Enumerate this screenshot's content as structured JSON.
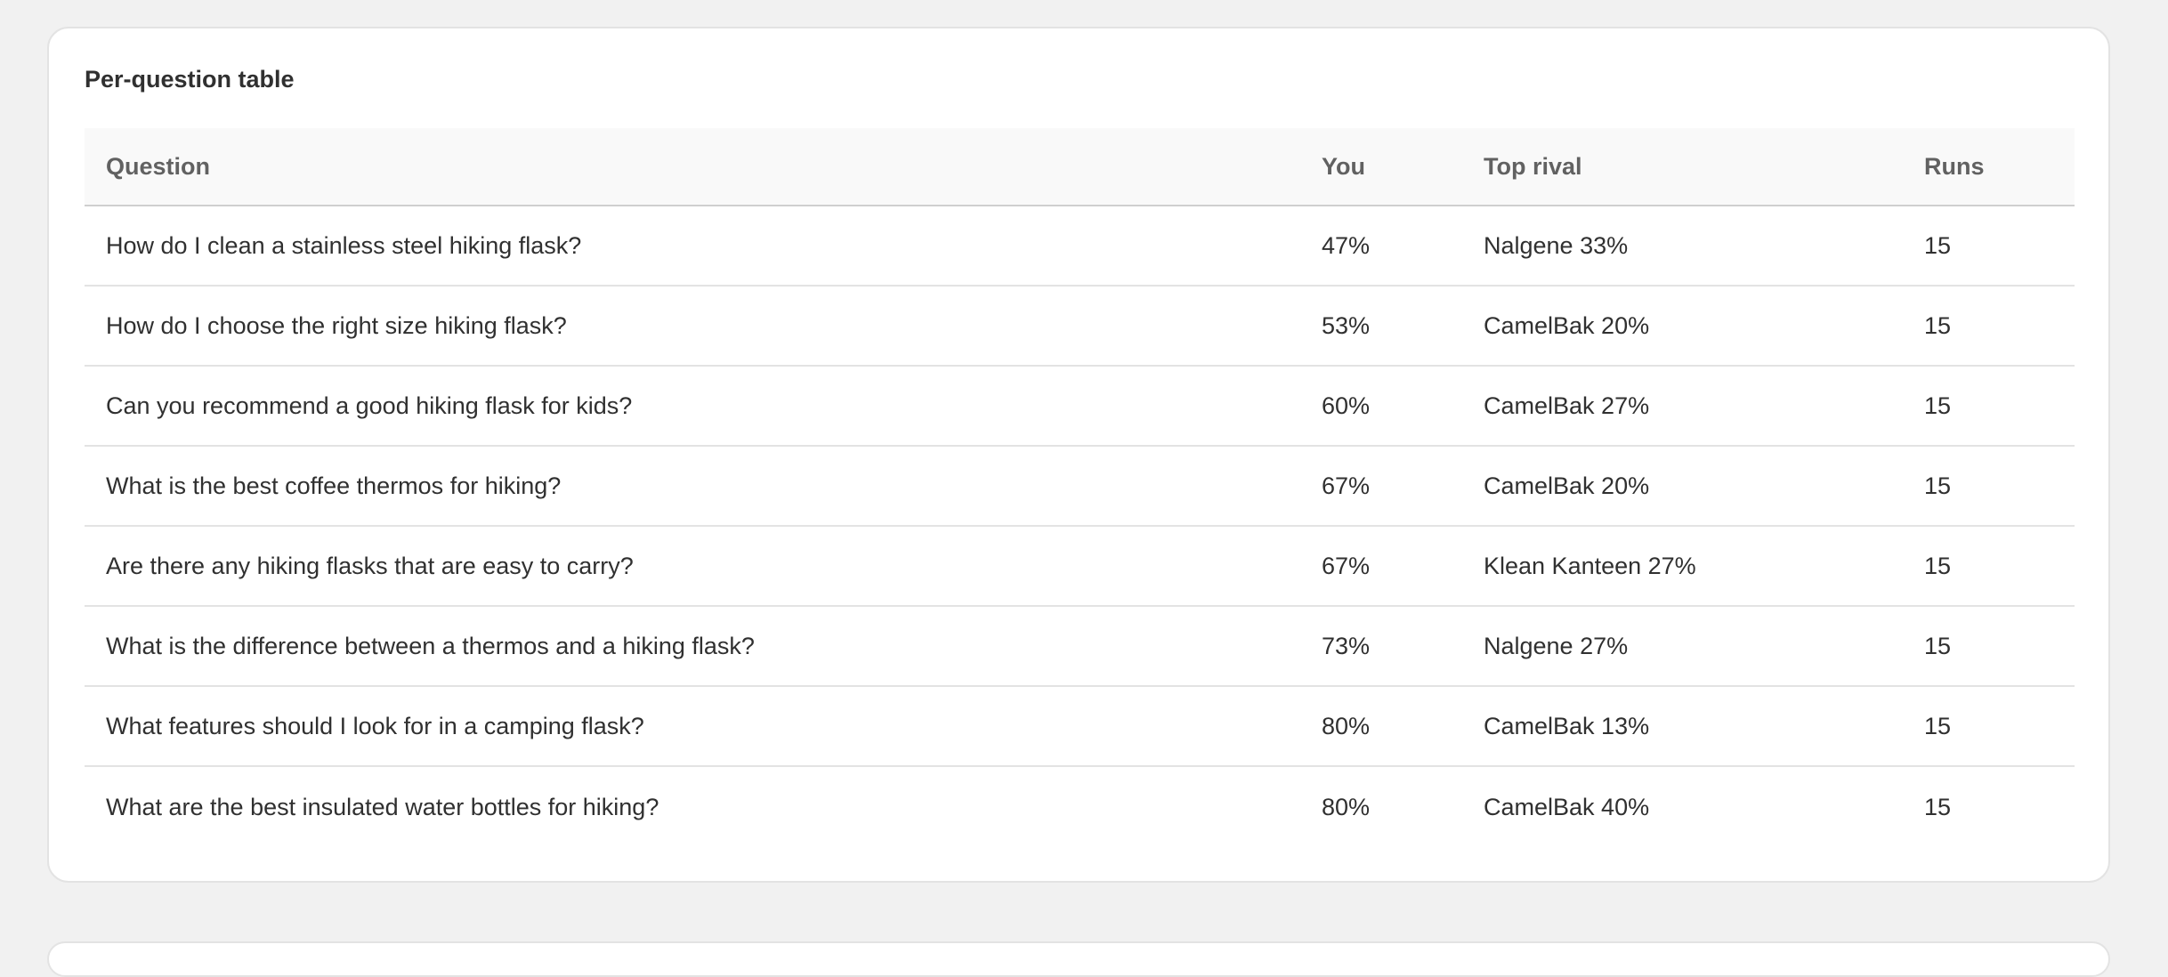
{
  "card": {
    "title": "Per-question table"
  },
  "table": {
    "headers": [
      "Question",
      "You",
      "Top rival",
      "Runs"
    ],
    "rows": [
      [
        "How do I clean a stainless steel hiking flask?",
        "47%",
        "Nalgene 33%",
        "15"
      ],
      [
        "How do I choose the right size hiking flask?",
        "53%",
        "CamelBak 20%",
        "15"
      ],
      [
        "Can you recommend a good hiking flask for kids?",
        "60%",
        "CamelBak 27%",
        "15"
      ],
      [
        "What is the best coffee thermos for hiking?",
        "67%",
        "CamelBak 20%",
        "15"
      ],
      [
        "Are there any hiking flasks that are easy to carry?",
        "67%",
        "Klean Kanteen 27%",
        "15"
      ],
      [
        "What is the difference between a thermos and a hiking flask?",
        "73%",
        "Nalgene 27%",
        "15"
      ],
      [
        "What features should I look for in a camping flask?",
        "80%",
        "CamelBak 13%",
        "15"
      ],
      [
        "What are the best insulated water bottles for hiking?",
        "80%",
        "CamelBak 40%",
        "15"
      ]
    ]
  }
}
